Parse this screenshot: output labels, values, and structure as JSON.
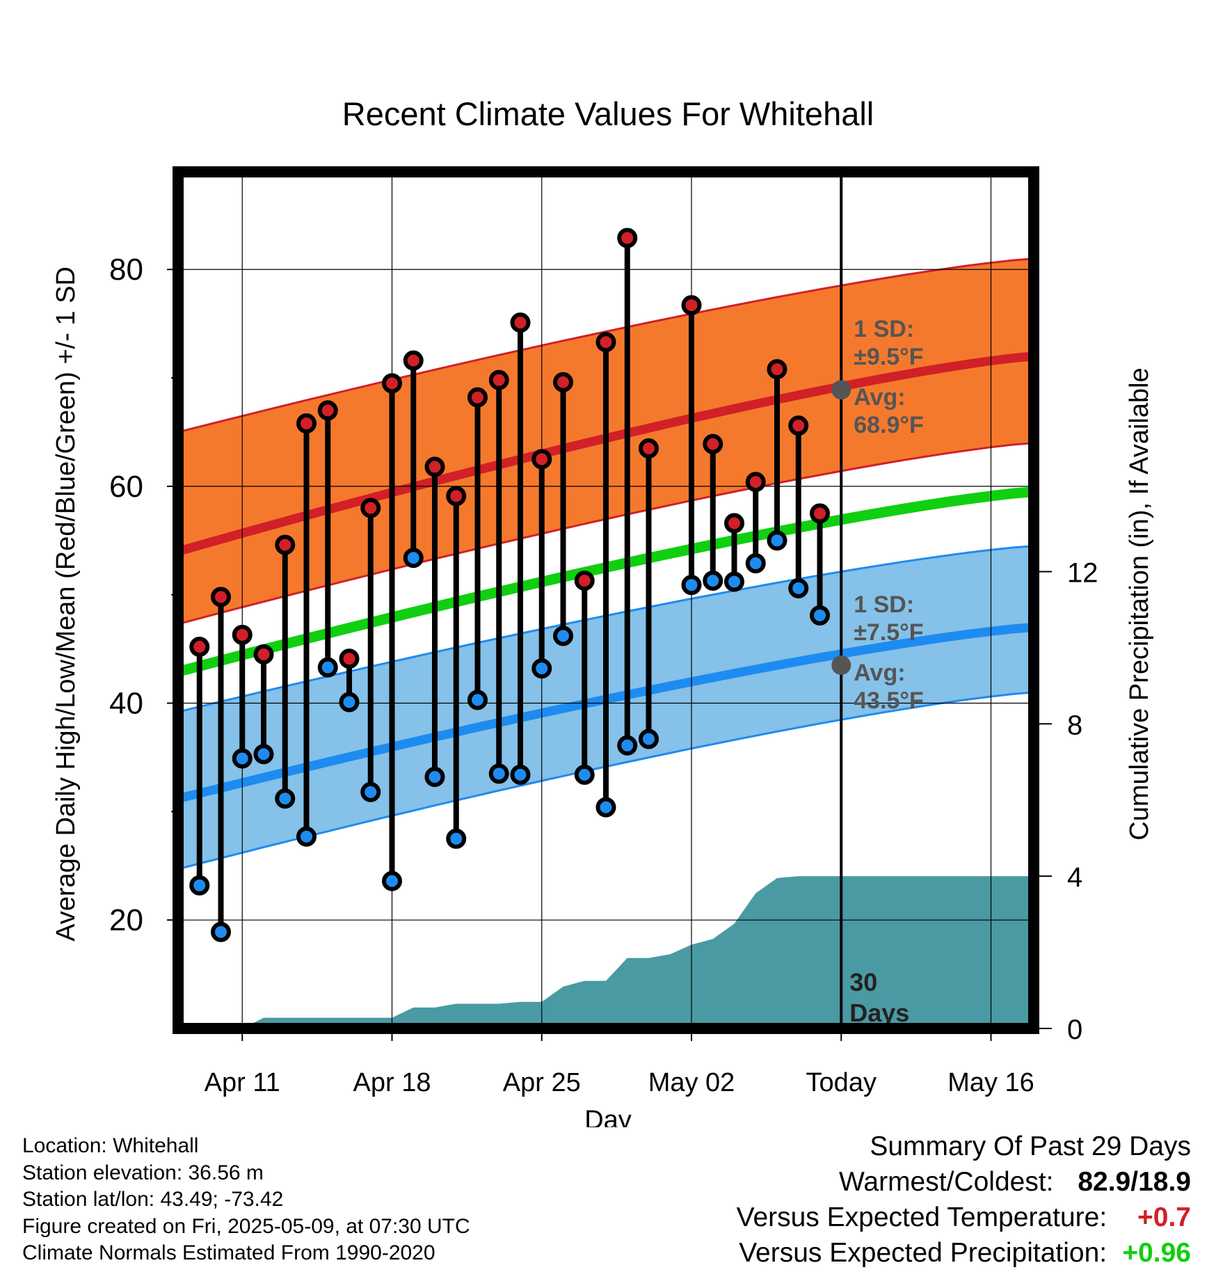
{
  "chart_data": {
    "type": "line",
    "title": "Recent Climate Values For Whitehall",
    "xlabel": "Day",
    "ylabel": "Average Daily High/Low/Mean (Red/Blue/Green) +/- 1 SD",
    "y2label": "Cumulative Precipitation (in), If Available",
    "x_range": [
      "2025-04-08",
      "2025-05-18"
    ],
    "ylim": [
      10,
      89
    ],
    "y2lim": [
      0,
      22.5
    ],
    "x_ticks": [
      {
        "date": "2025-04-11",
        "label": "Apr 11"
      },
      {
        "date": "2025-04-18",
        "label": "Apr 18"
      },
      {
        "date": "2025-04-25",
        "label": "Apr 25"
      },
      {
        "date": "2025-05-02",
        "label": "May 02"
      },
      {
        "date": "2025-05-09",
        "label": "Today"
      },
      {
        "date": "2025-05-16",
        "label": "May 16"
      }
    ],
    "y_ticks": [
      "20",
      "40",
      "60",
      "80"
    ],
    "y2_ticks": [
      "0",
      "4",
      "8",
      "12"
    ],
    "grid": true,
    "today": "2025-05-09",
    "today_text_1": "30",
    "today_text_2": "Days",
    "colors": {
      "high_band": "#f5792d",
      "high_line": "#d12027",
      "low_band": "#85c1e8",
      "low_line": "#1e8bf0",
      "mean_line": "#10cf10",
      "precip": "#4a9aa3",
      "today_marker": "#555555",
      "label_text": "#555555"
    },
    "normals": {
      "x": [
        "2025-04-08",
        "2025-05-18"
      ],
      "high_avg": [
        54.0,
        72.0
      ],
      "high_upper": [
        65.0,
        81.0
      ],
      "high_lower": [
        47.3,
        64.0
      ],
      "low_avg": [
        31.2,
        47.0
      ],
      "low_upper": [
        39.2,
        54.5
      ],
      "low_lower": [
        24.7,
        41.0
      ],
      "mean": [
        42.9,
        59.5
      ]
    },
    "annotations": {
      "high_sd_1": "1 SD:",
      "high_sd_2": "±9.5°F",
      "high_avg_1": "Avg:",
      "high_avg_2": "68.9°F",
      "high_avg_value": 68.9,
      "low_sd_1": "1 SD:",
      "low_sd_2": "±7.5°F",
      "low_avg_1": "Avg:",
      "low_avg_2": "43.5°F",
      "low_avg_value": 43.5
    },
    "daily": {
      "dates": [
        "2025-04-09",
        "2025-04-10",
        "2025-04-11",
        "2025-04-12",
        "2025-04-13",
        "2025-04-14",
        "2025-04-15",
        "2025-04-16",
        "2025-04-17",
        "2025-04-18",
        "2025-04-19",
        "2025-04-20",
        "2025-04-21",
        "2025-04-22",
        "2025-04-23",
        "2025-04-24",
        "2025-04-25",
        "2025-04-26",
        "2025-04-27",
        "2025-04-28",
        "2025-04-29",
        "2025-04-30",
        "2025-05-02",
        "2025-05-03",
        "2025-05-04",
        "2025-05-05",
        "2025-05-06",
        "2025-05-07",
        "2025-05-08"
      ],
      "high": [
        45.2,
        49.8,
        46.3,
        44.5,
        54.6,
        65.8,
        67.0,
        44.1,
        58.0,
        69.5,
        71.6,
        61.8,
        59.1,
        68.2,
        69.8,
        75.1,
        62.5,
        69.6,
        51.3,
        73.3,
        82.9,
        63.5,
        76.7,
        63.9,
        56.6,
        60.4,
        70.8,
        65.6,
        57.5
      ],
      "low": [
        23.2,
        18.9,
        34.9,
        35.3,
        31.2,
        27.7,
        43.3,
        40.1,
        31.8,
        23.6,
        53.4,
        33.2,
        27.5,
        40.3,
        33.5,
        33.4,
        43.2,
        46.2,
        33.4,
        30.4,
        36.1,
        36.7,
        50.9,
        51.3,
        51.2,
        52.9,
        55.0,
        50.6,
        48.1
      ]
    },
    "precip": {
      "dates": [
        "2025-04-11",
        "2025-04-12",
        "2025-04-13",
        "2025-04-14",
        "2025-04-15",
        "2025-04-16",
        "2025-04-17",
        "2025-04-18",
        "2025-04-19",
        "2025-04-20",
        "2025-04-21",
        "2025-04-22",
        "2025-04-23",
        "2025-04-24",
        "2025-04-25",
        "2025-04-26",
        "2025-04-27",
        "2025-04-28",
        "2025-04-29",
        "2025-04-30",
        "2025-05-01",
        "2025-05-02",
        "2025-05-03",
        "2025-05-04",
        "2025-05-05",
        "2025-05-06",
        "2025-05-07",
        "2025-05-08",
        "2025-05-09",
        "2025-05-18"
      ],
      "values": [
        0.0,
        0.28,
        0.28,
        0.28,
        0.28,
        0.28,
        0.28,
        0.28,
        0.55,
        0.55,
        0.65,
        0.65,
        0.65,
        0.7,
        0.7,
        1.1,
        1.25,
        1.25,
        1.85,
        1.85,
        1.95,
        2.2,
        2.35,
        2.75,
        3.55,
        3.95,
        4.0,
        4.0,
        4.0,
        4.0
      ]
    }
  },
  "footer": {
    "location": "Location: Whitehall",
    "elevation": "Station elevation: 36.56 m",
    "latlon": "Station lat/lon: 43.49; -73.42",
    "created": "Figure created on Fri, 2025-05-09, at 07:30 UTC",
    "normals_note": "Climate Normals Estimated From 1990-2020"
  },
  "summary": {
    "title": "Summary Of Past 29 Days",
    "warmest_coldest_label": "Warmest/Coldest:",
    "warmest_coldest_value": "82.9/18.9",
    "temp_label": "Versus Expected Temperature:",
    "temp_value": "+0.7",
    "temp_color": "#d12027",
    "precip_label": "Versus Expected Precipitation:",
    "precip_value": "+0.96",
    "precip_color": "#10cf10"
  }
}
